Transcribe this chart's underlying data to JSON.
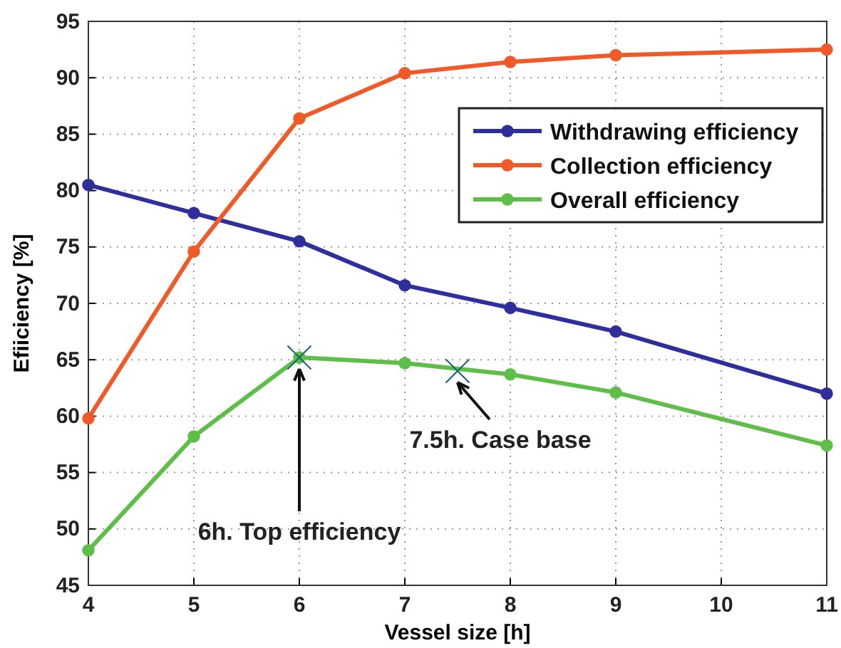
{
  "chart_data": {
    "type": "line",
    "xlabel": "Vessel size [h]",
    "ylabel": "Efiiciency [%]",
    "x": [
      4,
      5,
      6,
      7,
      8,
      9,
      11
    ],
    "series": [
      {
        "name": "Withdrawing efficiency",
        "color": "#2e2e9c",
        "values": [
          80.5,
          78.0,
          75.5,
          71.6,
          69.6,
          67.5,
          62.0
        ]
      },
      {
        "name": "Collection efficiency",
        "color": "#f05a28",
        "values": [
          59.8,
          74.6,
          86.4,
          90.4,
          91.4,
          92.0,
          92.5
        ]
      },
      {
        "name": "Overall efficiency",
        "color": "#5dbf48",
        "values": [
          48.1,
          58.2,
          65.2,
          64.7,
          63.7,
          62.1,
          57.4
        ]
      },
      {
        "type": "scatter",
        "marker": "cross",
        "color": "#17607a",
        "x": [
          6,
          7.5
        ],
        "values": [
          65.2,
          64.0
        ]
      }
    ],
    "annotations": [
      {
        "text": "6h. Top efficiency",
        "x": 6,
        "y": 65.2
      },
      {
        "text": "7.5h. Case base",
        "x": 7.5,
        "y": 64.0
      }
    ],
    "xlim": [
      4,
      11
    ],
    "xticks": [
      4,
      5,
      6,
      7,
      8,
      9,
      10,
      11
    ],
    "ylim": [
      45,
      95
    ],
    "yticks": [
      45,
      50,
      55,
      60,
      65,
      70,
      75,
      80,
      85,
      90,
      95
    ],
    "grid": true,
    "legend": "top right",
    "marker": "circle",
    "line_style": "solid"
  }
}
